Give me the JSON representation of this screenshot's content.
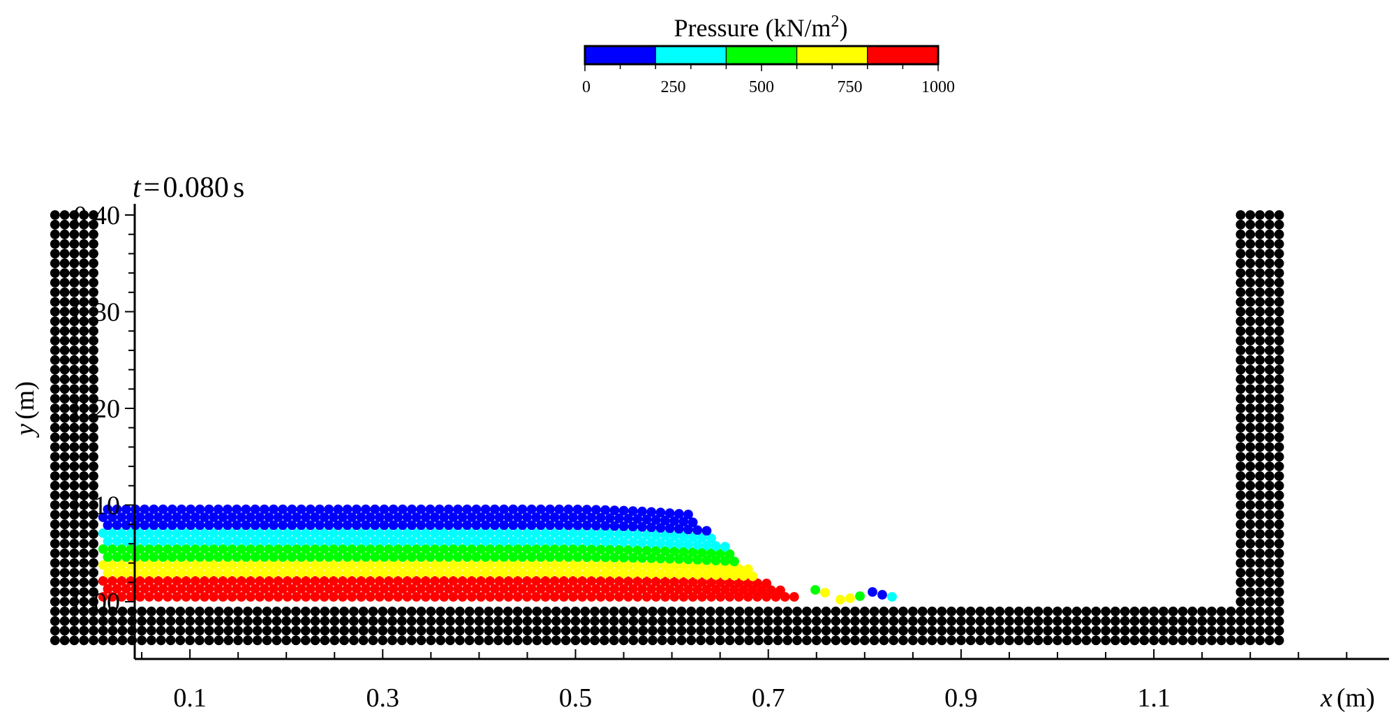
{
  "chart_data": {
    "type": "scatter",
    "title": "",
    "time_label": {
      "var": "t",
      "eq": "=",
      "value": "0.080",
      "unit": "s"
    },
    "xlabel": {
      "var": "x",
      "unit": "(m)"
    },
    "ylabel": {
      "var": "y",
      "unit": "(m)"
    },
    "xlim": [
      -0.05,
      1.22
    ],
    "ylim": [
      -0.05,
      0.41
    ],
    "xticks": [
      0.1,
      0.3,
      0.5,
      0.7,
      0.9,
      1.1
    ],
    "xtick_labels": [
      "0.1",
      "0.3",
      "0.5",
      "0.7",
      "0.9",
      "1.1"
    ],
    "yticks": [
      0.0,
      0.1,
      0.2,
      0.3,
      0.4
    ],
    "ytick_labels": [
      "0.00",
      "0.10",
      "0.20",
      "0.30",
      "0.40"
    ],
    "particle_spacing": 0.01,
    "colorbar": {
      "title": "Pressure (kN/m",
      "title_sup": "2",
      "title_end": ")",
      "ticks": [
        0,
        250,
        500,
        750,
        1000
      ],
      "tick_labels": [
        "0",
        "250",
        "500",
        "750",
        "1000"
      ],
      "bands": [
        {
          "range": [
            0,
            200
          ],
          "color": "#0000ff"
        },
        {
          "range": [
            200,
            400
          ],
          "color": "#00ffff"
        },
        {
          "range": [
            400,
            600
          ],
          "color": "#00ff00"
        },
        {
          "range": [
            600,
            800
          ],
          "color": "#ffff00"
        },
        {
          "range": [
            800,
            1000
          ],
          "color": "#ff0000"
        }
      ]
    },
    "wall_particles": {
      "color": "#000000",
      "left_wall": {
        "x_range": [
          -0.04,
          0.0
        ],
        "y_range": [
          -0.04,
          0.4
        ]
      },
      "right_wall": {
        "x_range": [
          1.19,
          1.23
        ],
        "y_range": [
          -0.04,
          0.4
        ]
      },
      "floor": {
        "x_range": [
          -0.04,
          1.23
        ],
        "y_range": [
          -0.04,
          0.0
        ]
      }
    },
    "fluid": {
      "x_start": 0.01,
      "x_front": 0.71,
      "height": 0.12,
      "rows_per_band": [
        3,
        2,
        2,
        2,
        3
      ]
    }
  }
}
